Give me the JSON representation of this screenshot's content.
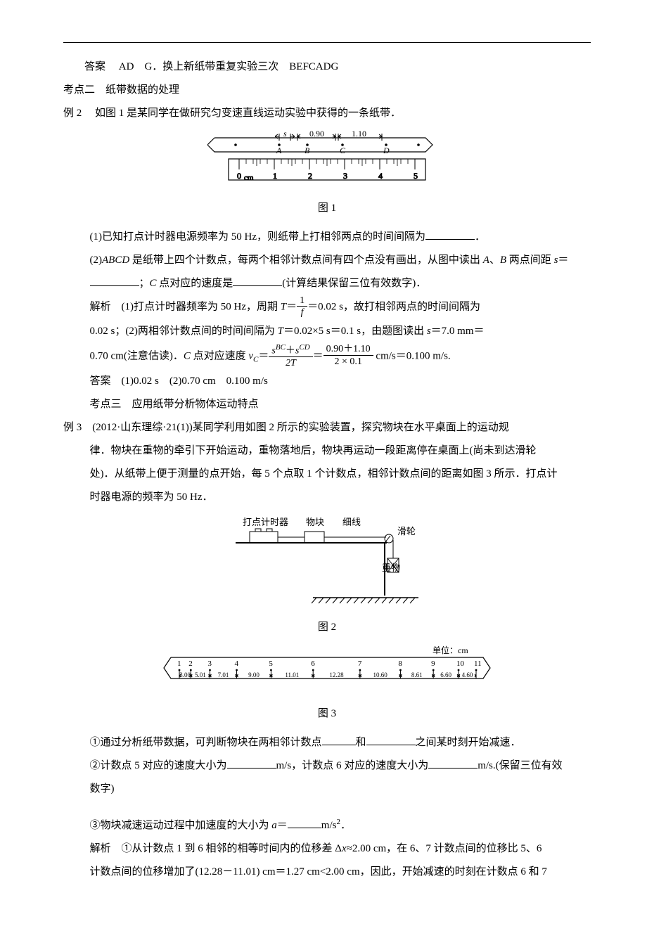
{
  "top": {
    "ans_label": "答案",
    "ans_val": "AD　G．换上新纸带重复实验三次　BEFCADG"
  },
  "kp2": {
    "title": "考点二　纸带数据的处理",
    "ex_label": "例 2",
    "ex_text": "如图 1 是某同学在做研究匀变速直线运动实验中获得的一条纸带．",
    "fig1_cap": "图 1",
    "q1": "(1)已知打点计时器电源频率为 50 Hz，则纸带上打相邻两点的时间间隔为",
    "q1_end": "．",
    "q2a": "(2)",
    "q2_abcd": "ABCD",
    "q2b": " 是纸带上四个计数点，每两个相邻计数点间有四个点没有画出，从图中读出 ",
    "q2_A": "A",
    "q2_B": "B",
    "q2c": " 两点间距 ",
    "q2_s": "s",
    "q2d": "＝",
    "q2e": "；",
    "q2_C": "C",
    "q2f": " 点对应的速度是",
    "q2g": "(计算结果保留三位有效数字)．",
    "sol_label": "解析",
    "sol1a": "(1)打点计时器频率为 50 Hz，周期 ",
    "sol1_T": "T",
    "sol1b": "＝",
    "frac1_num": "1",
    "frac1_den": "f",
    "sol1c": "＝0.02 s，故打相邻两点的时间间隔为",
    "sol2a": "0.02 s；(2)两相邻计数点间的时间间隔为 ",
    "sol2b": "＝0.02×5 s＝0.1 s，由题图读出 ",
    "sol2c": "＝7.0 mm＝",
    "sol3a": "0.70 cm(注意估读)．",
    "sol3b": " 点对应速度 ",
    "sol3_vc": "v",
    "sol3_cc": "C",
    "sol3c": "＝",
    "frac2_num_a": "s",
    "frac2_num_bc": "BC",
    "frac2_num_plus": "＋",
    "frac2_num_b": "s",
    "frac2_num_cd": "CD",
    "frac2_den": "2T",
    "sol3d": "＝",
    "frac3_num": "0.90＋1.10",
    "frac3_den": "2 × 0.1",
    "sol3e": " cm/s＝0.100 m/s.",
    "ans2_label": "答案",
    "ans2_val": "(1)0.02 s　(2)0.70 cm　0.100 m/s"
  },
  "kp3": {
    "title": "考点三　应用纸带分析物体运动特点",
    "ex_label": "例 3",
    "src": "(2012·山东理综·21(1))",
    "p1": "某同学利用如图 2 所示的实验装置，探究物块在水平桌面上的运动规",
    "p2": "律．物块在重物的牵引下开始运动，重物落地后，物块再运动一段距离停在桌面上(尚未到达滑轮",
    "p3": "处)．从纸带上便于测量的点开始，每 5 个点取 1 个计数点，相邻计数点间的距离如图 3 所示．打点计",
    "p4": "时器电源的频率为 50 Hz．",
    "fig2_cap": "图 2",
    "fig3_cap": "图 3",
    "fig2_labels": {
      "timer": "打点计时器",
      "block": "物块",
      "string": "细线",
      "pulley": "滑轮",
      "weight": "重物"
    },
    "fig3": {
      "unit": "单位：cm",
      "nums": [
        "1",
        "2",
        "3",
        "4",
        "5",
        "6",
        "7",
        "8",
        "9",
        "10",
        "11"
      ],
      "vals": [
        "3.00",
        "5.01",
        "7.01",
        "9.00",
        "11.01",
        "12.28",
        "10.60",
        "8.61",
        "6.60",
        "4.60"
      ]
    },
    "q1a": "①通过分析纸带数据，可判断物块在两相邻计数点",
    "q1b": "和",
    "q1c": "之间某时刻开始减速．",
    "q2a": "②计数点 5 对应的速度大小为",
    "q2b": "m/s，计数点 6 对应的速度大小为",
    "q2c": "m/s.(保留三位有效",
    "q2d": "数字)",
    "q3a": "③物块减速运动过程中加速度的大小为 ",
    "q3_a": "a",
    "q3b": "＝",
    "q3c": "m/s",
    "q3d": "．",
    "sol_label": "解析",
    "sol1a": "①从计数点 1 到 6 相邻的相等时间内的位移差 Δ",
    "sol1_x": "x",
    "sol1b": "≈2.00 cm，在 6、7 计数点间的位移比 5、6",
    "sol2": "计数点间的位移增加了(12.28－11.01) cm＝1.27 cm<2.00 cm，因此，开始减速的时刻在计数点 6 和 7",
    "ruler": {
      "s": "s",
      "m1": "0.90",
      "m2": "1.10",
      "A": "A",
      "B": "B",
      "C": "C",
      "D": "D",
      "zero": "0",
      "cm": "cm",
      "t1": "1",
      "t2": "2",
      "t3": "3",
      "t4": "4",
      "t5": "5"
    }
  }
}
